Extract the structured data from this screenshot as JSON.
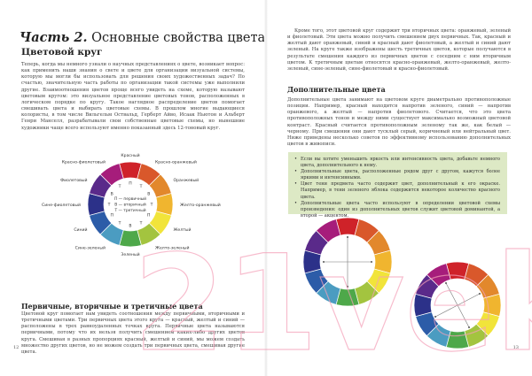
{
  "left": {
    "chapter_label": "Часть 2.",
    "chapter_title": "Основные свойства цвета",
    "section_title": "Цветовой круг",
    "intro": "Теперь, когда мы немного узнали о научных представлениях о цвете, возникает вопрос: как применить наши знания о свете и цвете для организации визуальной системы, которую мы могли бы использовать для решения своих художественных задач? По счастью, значительную часть работы по организации такой системы уже выполнили другие. Взаимоотношения цветов проще всего увидеть на схеме, которую называют цветовым кругом: это визуальное представление цветовых тонов, расположенных в логическом порядке по кругу. Такое наглядное распределение цветов помогает смешивать цвета и выбирать цветовые схемы. В прошлом многие выдающиеся колористы, в том числе Вильгельм Оствальд, Герберт Айво, Исаак Ньютон и Альберт Генри Манселл, разрабатывали свои собственные цветовые схемы, но нынешние художники чаще всего используют именно показанный здесь 12-тоновый круг.",
    "wheel": {
      "labels": [
        "Красный",
        "Красно-оранжевый",
        "Оранжевый",
        "Желто-оранжевый",
        "Желтый",
        "Желто-зеленый",
        "Зеленый",
        "Сине-зеленый",
        "Синий",
        "Сине-фиолетовый",
        "Фиолетовый",
        "Красно-фиолетовый"
      ],
      "types": [
        "П",
        "Т",
        "В",
        "Т",
        "П",
        "Т",
        "В",
        "Т",
        "П",
        "Т",
        "В",
        "Т"
      ],
      "legend": [
        "П — первичный",
        "В — вторичный",
        "Т — третичный"
      ]
    },
    "section2_title": "Первичные, вторичные и третичные цвета",
    "section2_text": "Цветовой круг помогает нам увидеть соотношения между первичными, вторичными и третичными цветами. Три первичных цвета этого круга — красный, желтый и синий — расположены в трех равноудаленных точках круга. Первичные цвета называются первичными, потому что их нельзя получить смешением каких-либо других цветов круга. Смешивая в разных пропорциях красный, желтый и синий, мы можем создать множество других цветов, но не можем создать три первичных цвета, смешивая другие цвета.",
    "page_number": "12"
  },
  "right": {
    "text1": "Кроме того, этот цветовой круг содержит три вторичных цвета: оранжевый, зеленый и фиолетовый. Эти цвета можно получить смешением двух первичных. Так, красный и желтый дают оранжевый, синий и красный дают фиолетовый, а желтый и синий дают зеленый. На круге также изображены шесть третичных цветов, которые получаются в результате смешения каждого из первичных цветов с соседним с ним вторичным цветом. К третичным цветам относятся красно-оранжевый, желто-оранжевый, желто-зеленый, сине-зеленый, сине-фиолетовый и красно-фиолетовый.",
    "section_title": "Дополнительные цвета",
    "text2": "Дополнительные цвета занимают на цветовом круге диаметрально противоположные позиции. Например, красный находится напротив зеленого, синий — напротив оранжевого, а желтый — напротив фиолетового. Считается, что это цвета противоположных тонов и между ними существует максимально возможный цветовой контраст. Красный считается противоположным зеленому так же, как белый — черному. При смешении они дают тусклый серый, коричневый или нейтральный цвет. Ниже приведены несколько советов по эффективному использованию дополнительных цветов в живописи.",
    "tips": [
      "Если вы хотите уменьшить яркость или интенсивность цвета, добавьте немного цвета, дополнительного к нему.",
      "Дополнительные цвета, расположенные рядом друг с другом, кажутся более яркими и интенсивными.",
      "Цвет тени предмета часто содержит цвет, дополнительный к его окраске. Например, в тени зеленого яблока содержится некоторое количество красного цвета.",
      "Дополнительные цвета часто используют в определении цветовой схемы произведения: один из дополнительных цветов служит цветовой доминантой, а второй — акцентом."
    ],
    "page_number": "13"
  },
  "watermark": "21vek.by",
  "colors": {
    "wheel": [
      "#cf2229",
      "#d9582b",
      "#e2882c",
      "#f0b52f",
      "#f1e43a",
      "#a3c43f",
      "#4ea84a",
      "#4b9cc1",
      "#2c5ca8",
      "#2c3189",
      "#5a2a8a",
      "#a61d7b"
    ],
    "tip_box": "#dde9c5"
  }
}
